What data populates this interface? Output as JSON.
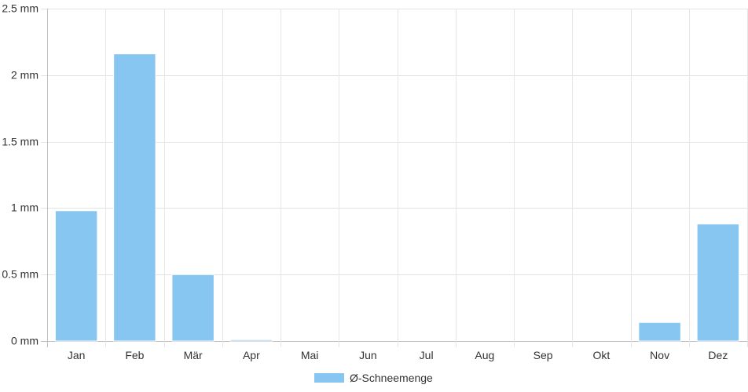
{
  "chart_data": {
    "type": "bar",
    "categories": [
      "Jan",
      "Feb",
      "Mär",
      "Apr",
      "Mai",
      "Jun",
      "Jul",
      "Aug",
      "Sep",
      "Okt",
      "Nov",
      "Dez"
    ],
    "series": [
      {
        "name": "Ø-Schneemenge",
        "values": [
          0.98,
          2.16,
          0.5,
          0.01,
          0,
          0,
          0,
          0,
          0,
          0,
          0.14,
          0.88
        ],
        "color": "#88C6F2"
      }
    ],
    "y_ticks": [
      "0 mm",
      "0.5 mm",
      "1 mm",
      "1.5 mm",
      "2 mm",
      "2.5 mm"
    ],
    "ylim": [
      0,
      2.5
    ],
    "grid": true,
    "legend_position": "bottom"
  },
  "legend": {
    "label": "Ø-Schneemenge"
  }
}
